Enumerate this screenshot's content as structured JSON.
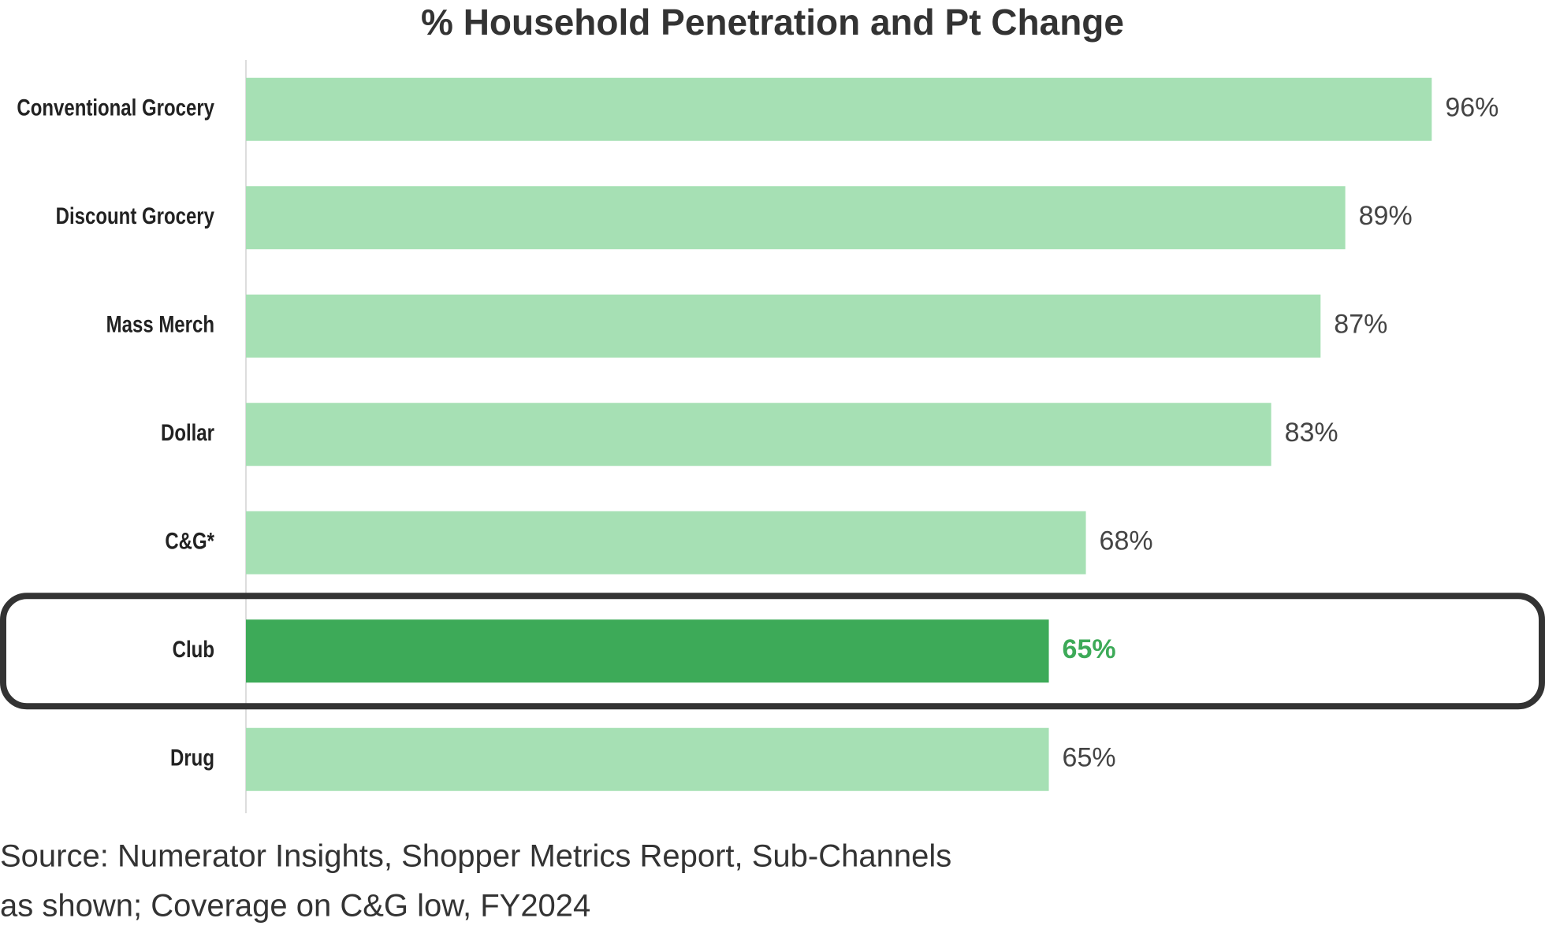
{
  "chart_data": {
    "type": "bar",
    "orientation": "horizontal",
    "title": "% Household Penetration and Pt Change",
    "categories": [
      "Conventional Grocery",
      "Discount Grocery",
      "Mass Merch",
      "Dollar",
      "C&G*",
      "Club",
      "Drug"
    ],
    "values": [
      96,
      89,
      87,
      83,
      68,
      65,
      65
    ],
    "value_labels": [
      "96%",
      "89%",
      "87%",
      "83%",
      "68%",
      "65%",
      "65%"
    ],
    "colors": [
      "#a6e0b4",
      "#a6e0b4",
      "#a6e0b4",
      "#a6e0b4",
      "#a6e0b4",
      "#3daa58",
      "#a6e0b4"
    ],
    "label_colors": [
      "#444444",
      "#444444",
      "#444444",
      "#444444",
      "#444444",
      "#3daa58",
      "#444444"
    ],
    "xlim": [
      0,
      100
    ],
    "source": [
      "Source: Numerator Insights, Shopper Metrics Report, Sub-Channels",
      "as shown;  Coverage on C&G low, FY2024"
    ]
  }
}
